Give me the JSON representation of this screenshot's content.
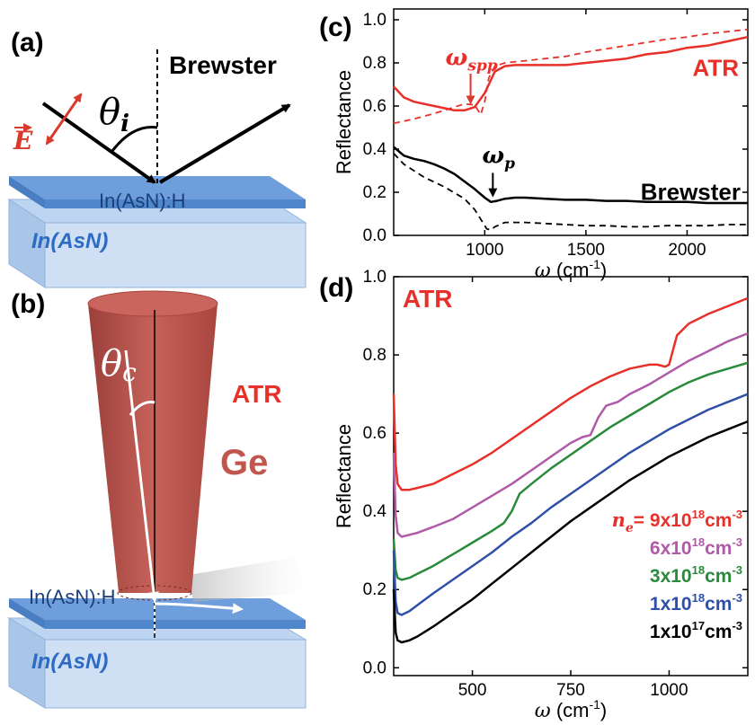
{
  "panels": {
    "a": {
      "label": "(a)",
      "brewster": "Brewster",
      "theta": "θ",
      "theta_sub": "i",
      "efield": "E",
      "film": "In(AsN):H",
      "substrate": "In(AsN)"
    },
    "b": {
      "label": "(b)",
      "atr": "ATR",
      "theta": "θ",
      "theta_sub": "c",
      "prism": "Ge",
      "film": "In(AsN):H",
      "substrate": "In(AsN)"
    }
  },
  "chart_data": [
    {
      "panel": "(c)",
      "type": "line",
      "xlabel_symbol": "ω",
      "xlabel_unit": "(cm",
      "xlabel_exp": "-1",
      "xlabel_close": ")",
      "ylabel": "Reflectance",
      "xlim": [
        550,
        2300
      ],
      "ylim": [
        0.0,
        1.05
      ],
      "xticks": [
        1000,
        1500,
        2000
      ],
      "yticks": [
        0.0,
        0.2,
        0.4,
        0.6,
        0.8,
        1.0
      ],
      "annotations": {
        "spp": {
          "symbol": "ω",
          "sub": "spp",
          "x": 930,
          "y": 0.59,
          "color": "#e8302a"
        },
        "p": {
          "symbol": "ω",
          "sub": "p",
          "x": 1040,
          "y": 0.16,
          "color": "#000000"
        }
      },
      "labels": [
        {
          "text": "ATR",
          "color": "#e8302a"
        },
        {
          "text": "Brewster",
          "color": "#000000"
        }
      ],
      "series": [
        {
          "color": "#e8302a",
          "dash": false,
          "x": [
            550,
            600,
            650,
            700,
            750,
            800,
            850,
            900,
            950,
            1000,
            1050,
            1100,
            1150,
            1200,
            1300,
            1400,
            1500,
            1600,
            1700,
            1800,
            1900,
            2000,
            2100,
            2200,
            2300
          ],
          "y": [
            0.69,
            0.64,
            0.62,
            0.61,
            0.6,
            0.59,
            0.58,
            0.58,
            0.595,
            0.66,
            0.76,
            0.785,
            0.79,
            0.79,
            0.79,
            0.79,
            0.8,
            0.81,
            0.82,
            0.84,
            0.85,
            0.87,
            0.88,
            0.9,
            0.92
          ]
        },
        {
          "color": "#e8302a",
          "dash": true,
          "x": [
            550,
            650,
            750,
            850,
            900,
            950,
            980,
            1000,
            1020,
            1050,
            1100,
            1200,
            1300,
            1400,
            1500,
            1600,
            1700,
            1800,
            1900,
            2000,
            2100,
            2200,
            2300
          ],
          "y": [
            0.52,
            0.54,
            0.565,
            0.595,
            0.61,
            0.605,
            0.56,
            0.62,
            0.73,
            0.785,
            0.8,
            0.81,
            0.82,
            0.83,
            0.85,
            0.865,
            0.88,
            0.895,
            0.91,
            0.92,
            0.935,
            0.945,
            0.955
          ]
        },
        {
          "color": "#000000",
          "dash": false,
          "x": [
            550,
            600,
            650,
            700,
            750,
            800,
            850,
            900,
            950,
            1000,
            1030,
            1060,
            1100,
            1150,
            1200,
            1300,
            1400,
            1500,
            1600,
            1700,
            1800,
            1900,
            2000,
            2100,
            2200,
            2300
          ],
          "y": [
            0.41,
            0.37,
            0.355,
            0.345,
            0.33,
            0.31,
            0.285,
            0.25,
            0.215,
            0.175,
            0.155,
            0.16,
            0.17,
            0.175,
            0.175,
            0.17,
            0.165,
            0.165,
            0.16,
            0.16,
            0.155,
            0.155,
            0.155,
            0.15,
            0.15,
            0.15
          ]
        },
        {
          "color": "#000000",
          "dash": true,
          "x": [
            550,
            600,
            700,
            800,
            900,
            950,
            990,
            1010,
            1030,
            1050,
            1100,
            1200,
            1300,
            1400,
            1500,
            1600,
            1700,
            1800,
            1900,
            2000,
            2100,
            2200,
            2300
          ],
          "y": [
            0.38,
            0.33,
            0.27,
            0.225,
            0.17,
            0.12,
            0.06,
            0.03,
            0.025,
            0.04,
            0.06,
            0.06,
            0.055,
            0.05,
            0.045,
            0.045,
            0.04,
            0.04,
            0.045,
            0.045,
            0.045,
            0.05,
            0.05
          ]
        }
      ]
    },
    {
      "panel": "(d)",
      "type": "line",
      "xlabel_symbol": "ω",
      "xlabel_unit": "(cm",
      "xlabel_exp": "-1",
      "xlabel_close": ")",
      "ylabel": "Reflectance",
      "xlim": [
        300,
        1200
      ],
      "ylim": [
        -0.02,
        1.0
      ],
      "xticks": [
        500,
        750,
        1000
      ],
      "yticks": [
        0.0,
        0.2,
        0.4,
        0.6,
        0.8,
        1.0
      ],
      "title": "ATR",
      "title_color": "#e8302a",
      "legend_prefix": {
        "symbol": "n",
        "sub": "e",
        "eq": "= "
      },
      "series": [
        {
          "name_base": "9x10",
          "name_exp": "18",
          "name_unit": "cm",
          "name_unit_exp": "-3",
          "color": "#e8302a",
          "x": [
            300,
            305,
            310,
            320,
            340,
            360,
            400,
            450,
            500,
            550,
            600,
            650,
            700,
            750,
            800,
            850,
            900,
            950,
            970,
            990,
            1000,
            1020,
            1050,
            1100,
            1150,
            1200
          ],
          "y": [
            0.7,
            0.52,
            0.47,
            0.455,
            0.455,
            0.46,
            0.47,
            0.495,
            0.52,
            0.55,
            0.585,
            0.62,
            0.655,
            0.69,
            0.72,
            0.745,
            0.765,
            0.775,
            0.775,
            0.77,
            0.775,
            0.85,
            0.88,
            0.905,
            0.925,
            0.945
          ]
        },
        {
          "name_base": "6x10",
          "name_exp": "18",
          "name_unit": "cm",
          "name_unit_exp": "-3",
          "color": "#b05aa8",
          "x": [
            300,
            305,
            310,
            320,
            340,
            360,
            400,
            450,
            500,
            550,
            600,
            650,
            700,
            750,
            780,
            800,
            820,
            840,
            870,
            900,
            950,
            1000,
            1050,
            1100,
            1150,
            1200
          ],
          "y": [
            0.55,
            0.39,
            0.345,
            0.335,
            0.34,
            0.345,
            0.36,
            0.38,
            0.41,
            0.44,
            0.47,
            0.505,
            0.54,
            0.575,
            0.59,
            0.595,
            0.64,
            0.67,
            0.68,
            0.7,
            0.725,
            0.755,
            0.785,
            0.81,
            0.835,
            0.855
          ]
        },
        {
          "name_base": "3x10",
          "name_exp": "18",
          "name_unit": "cm",
          "name_unit_exp": "-3",
          "color": "#2a8a3c",
          "x": [
            300,
            305,
            310,
            320,
            340,
            360,
            400,
            450,
            500,
            550,
            580,
            600,
            620,
            650,
            700,
            750,
            800,
            850,
            900,
            950,
            1000,
            1050,
            1100,
            1150,
            1200
          ],
          "y": [
            0.33,
            0.25,
            0.23,
            0.225,
            0.23,
            0.24,
            0.26,
            0.29,
            0.32,
            0.35,
            0.37,
            0.4,
            0.445,
            0.47,
            0.51,
            0.545,
            0.58,
            0.615,
            0.645,
            0.675,
            0.705,
            0.73,
            0.75,
            0.765,
            0.78
          ]
        },
        {
          "name_base": "1x10",
          "name_exp": "18",
          "name_unit": "cm",
          "name_unit_exp": "-3",
          "color": "#2f4fa8",
          "x": [
            300,
            305,
            310,
            320,
            340,
            360,
            400,
            450,
            500,
            550,
            600,
            650,
            700,
            750,
            800,
            850,
            900,
            950,
            1000,
            1050,
            1100,
            1150,
            1200
          ],
          "y": [
            0.3,
            0.17,
            0.14,
            0.135,
            0.145,
            0.16,
            0.19,
            0.225,
            0.26,
            0.295,
            0.335,
            0.37,
            0.41,
            0.445,
            0.48,
            0.515,
            0.55,
            0.58,
            0.61,
            0.635,
            0.66,
            0.68,
            0.7
          ]
        },
        {
          "name_base": "1x10",
          "name_exp": "17",
          "name_unit": "cm",
          "name_unit_exp": "-3",
          "color": "#000000",
          "x": [
            300,
            305,
            310,
            320,
            340,
            360,
            400,
            450,
            500,
            550,
            600,
            650,
            700,
            750,
            800,
            850,
            900,
            950,
            1000,
            1050,
            1100,
            1150,
            1200
          ],
          "y": [
            0.2,
            0.09,
            0.07,
            0.065,
            0.07,
            0.08,
            0.105,
            0.14,
            0.175,
            0.215,
            0.255,
            0.295,
            0.335,
            0.375,
            0.41,
            0.445,
            0.48,
            0.51,
            0.54,
            0.565,
            0.59,
            0.61,
            0.63
          ]
        }
      ]
    }
  ],
  "colors": {
    "red": "#e8302a",
    "film": "#5b8fd4",
    "substrate": "#bdd5f0",
    "prism": "#b8504a"
  }
}
